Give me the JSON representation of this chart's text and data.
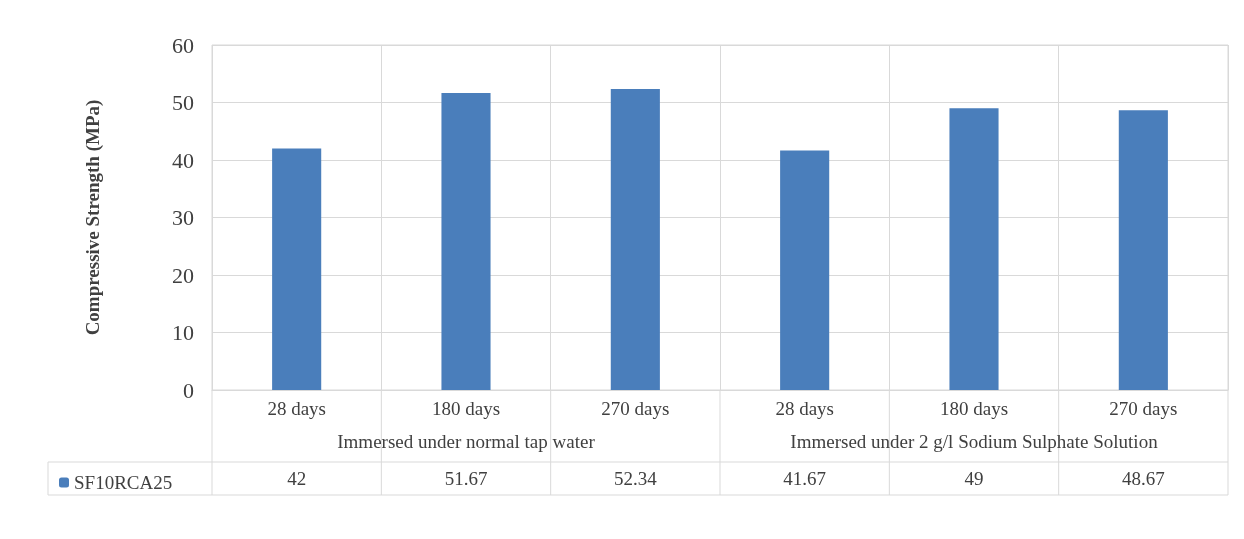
{
  "chart_data": {
    "type": "bar",
    "ylabel": "Compressive Strength (MPa)",
    "categories": [
      "28 days",
      "180 days",
      "270 days",
      "28 days",
      "180 days",
      "270 days"
    ],
    "annotations": [
      "Immersed under normal tap water",
      "Immersed under 2 g/l Sodium Sulphate Solution"
    ],
    "series": [
      {
        "name": "SF10RCA25",
        "color": "#4a7ebb",
        "values": [
          42,
          51.67,
          52.34,
          41.67,
          49,
          48.67
        ]
      }
    ],
    "ylim": [
      0,
      60
    ],
    "yticks": [
      0,
      10,
      20,
      30,
      40,
      50,
      60
    ],
    "grid": true,
    "legend": "bottom left",
    "data_labels": true
  }
}
